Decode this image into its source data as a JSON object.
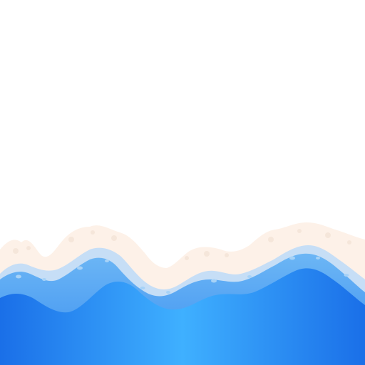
{
  "colors": {
    "background": "#ffffff",
    "foam": "#fdf3ec",
    "foam_shadow": "#f3e4d8",
    "light_water": "#c8e0f7",
    "mid_water": "#6fb8f4",
    "deep_water": "#1a78ee",
    "water_highlight": "#43b2ff"
  },
  "icons": {
    "scene": "ocean-wave-illustration"
  }
}
